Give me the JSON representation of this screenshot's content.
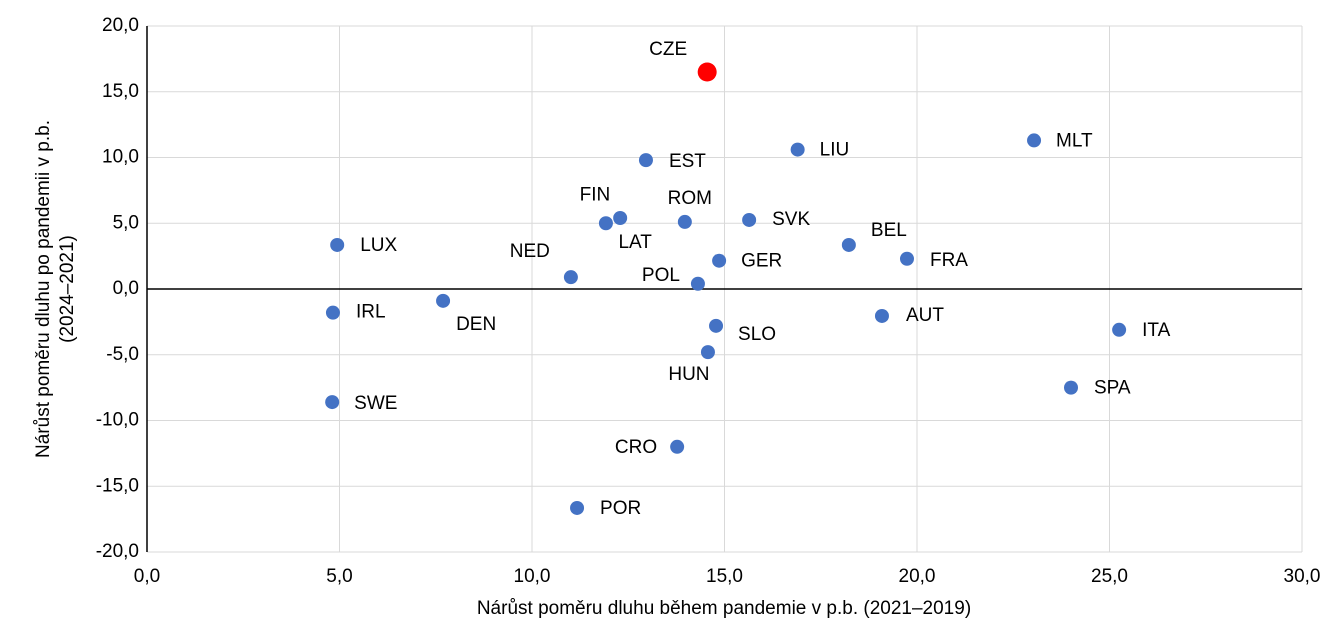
{
  "chart_data": {
    "type": "scatter",
    "x_label": "Nárůst poměru dluhu během pandemie v p.b. (2021–2019)",
    "y_label": [
      "Nárůst poměru dluhu po pandemii  v p.b.",
      "(2024–2021)"
    ],
    "labels": [
      "CZE",
      "EST",
      "LIU",
      "MLT",
      "FIN",
      "LAT",
      "ROM",
      "SVK",
      "BEL",
      "FRA",
      "GER",
      "POL",
      "NED",
      "LUX",
      "IRL",
      "DEN",
      "SLO",
      "HUN",
      "AUT",
      "ITA",
      "SPA",
      "SWE",
      "CRO",
      "POR"
    ],
    "x": [
      14.55,
      12.96,
      16.9,
      23.04,
      11.92,
      12.29,
      13.97,
      15.64,
      18.23,
      19.74,
      14.86,
      14.31,
      11.01,
      4.94,
      4.83,
      7.69,
      14.78,
      14.57,
      19.09,
      25.25,
      24.0,
      4.81,
      13.77,
      11.17
    ],
    "values": [
      16.5,
      9.8,
      10.6,
      11.3,
      5.0,
      5.4,
      5.1,
      5.25,
      3.35,
      2.3,
      2.15,
      0.4,
      0.9,
      3.35,
      -1.8,
      -0.9,
      -2.8,
      -4.8,
      -2.05,
      -3.1,
      -7.5,
      -8.6,
      -12.0,
      -16.65
    ],
    "colors": [
      "#ff0000",
      "#4472c4",
      "#4472c4",
      "#4472c4",
      "#4472c4",
      "#4472c4",
      "#4472c4",
      "#4472c4",
      "#4472c4",
      "#4472c4",
      "#4472c4",
      "#4472c4",
      "#4472c4",
      "#4472c4",
      "#4472c4",
      "#4472c4",
      "#4472c4",
      "#4472c4",
      "#4472c4",
      "#4472c4",
      "#4472c4",
      "#4472c4",
      "#4472c4",
      "#4472c4"
    ],
    "xlim": [
      0,
      30
    ],
    "ylim": [
      -20,
      20
    ],
    "xticks": [
      {
        "value": 0,
        "label": "0,0"
      },
      {
        "value": 5,
        "label": "5,0"
      },
      {
        "value": 10,
        "label": "10,0"
      },
      {
        "value": 15,
        "label": "15,0"
      },
      {
        "value": 20,
        "label": "20,0"
      },
      {
        "value": 25,
        "label": "25,0"
      },
      {
        "value": 30,
        "label": "30,0"
      }
    ],
    "yticks": [
      {
        "value": -20,
        "label": "-20,0"
      },
      {
        "value": -15,
        "label": "-15,0"
      },
      {
        "value": -10,
        "label": "-10,0"
      },
      {
        "value": -5,
        "label": "-5,0"
      },
      {
        "value": 0,
        "label": "0,0"
      },
      {
        "value": 5,
        "label": "5,0"
      },
      {
        "value": 10,
        "label": "10,0"
      },
      {
        "value": 15,
        "label": "15,0"
      },
      {
        "value": 20,
        "label": "20,0"
      }
    ],
    "grid": true
  }
}
